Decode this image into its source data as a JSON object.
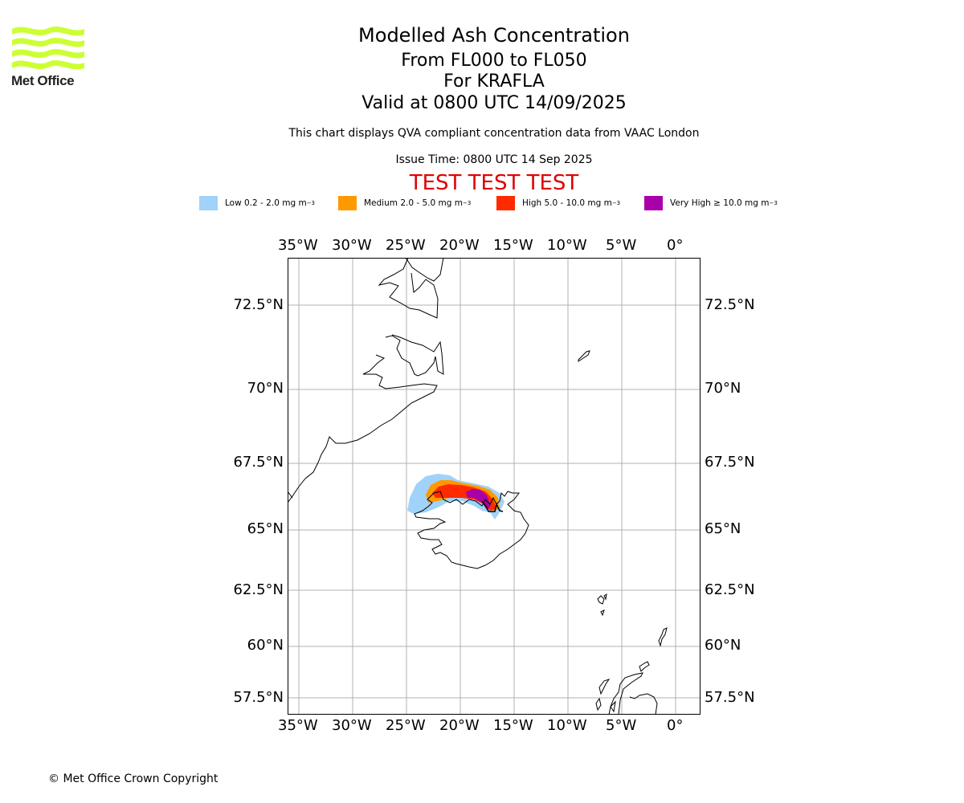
{
  "header": {
    "title": "Modelled Ash Concentration",
    "levels": "From FL000 to FL050",
    "volcano": "For KRAFLA",
    "valid": "Valid at 0800 UTC 14/09/2025",
    "description": "This chart displays QVA compliant concentration data from VAAC London",
    "issue_time": "Issue Time: 0800 UTC 14 Sep 2025",
    "test_banner": "TEST TEST TEST"
  },
  "logo": {
    "text": "Met Office",
    "icon": "met-office-waves-logo",
    "color": "#ccff33"
  },
  "legend": [
    {
      "label": "Low 0.2 - 2.0 mg m",
      "unit_sup": "−3",
      "color": "#a0d2fa"
    },
    {
      "label": "Medium 2.0 - 5.0 mg m",
      "unit_sup": "−3",
      "color": "#ff9900"
    },
    {
      "label": "High 5.0 - 10.0 mg m",
      "unit_sup": "−3",
      "color": "#ff2a00"
    },
    {
      "label": "Very High  ≥  10.0 mg m",
      "unit_sup": "−3",
      "color": "#aa00aa"
    }
  ],
  "axes": {
    "lon_labels": [
      "35°W",
      "30°W",
      "25°W",
      "20°W",
      "15°W",
      "10°W",
      "5°W",
      "0°"
    ],
    "lat_labels": [
      "72.5°N",
      "70°N",
      "67.5°N",
      "65°N",
      "62.5°N",
      "60°N",
      "57.5°N"
    ]
  },
  "footer": {
    "copyright": "© Met Office Crown Copyright"
  }
}
